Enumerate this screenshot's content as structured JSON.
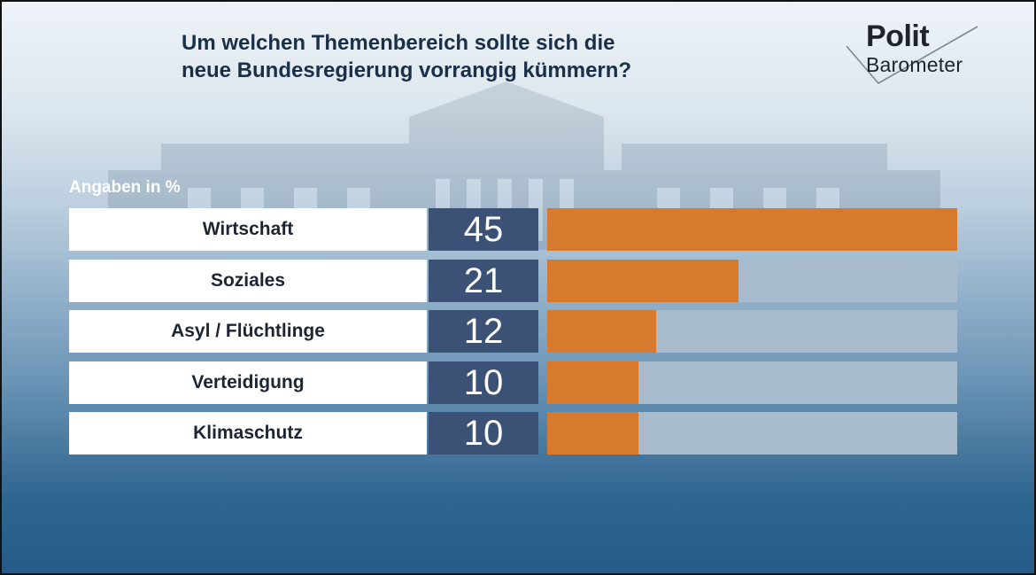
{
  "title": {
    "line1": "Um welchen Themenbereich sollte sich die",
    "line2": "neue Bundesregierung vorrangig kümmern?"
  },
  "logo": {
    "line1": "Polit",
    "line2": "Barometer"
  },
  "colors": {
    "bar": "#d77a2e",
    "track": "#a9bcce",
    "value_box": "#3b5276",
    "label_box": "#ffffff",
    "title_text": "#1a2f48"
  },
  "chart_data": {
    "type": "bar",
    "orientation": "horizontal",
    "unit_label": "Angaben in %",
    "categories": [
      "Wirtschaft",
      "Soziales",
      "Asyl / Flüchtlinge",
      "Verteidigung",
      "Klimaschutz"
    ],
    "values": [
      45,
      21,
      12,
      10,
      10
    ],
    "xlim": [
      0,
      45
    ],
    "grid": false,
    "legend": "none"
  }
}
